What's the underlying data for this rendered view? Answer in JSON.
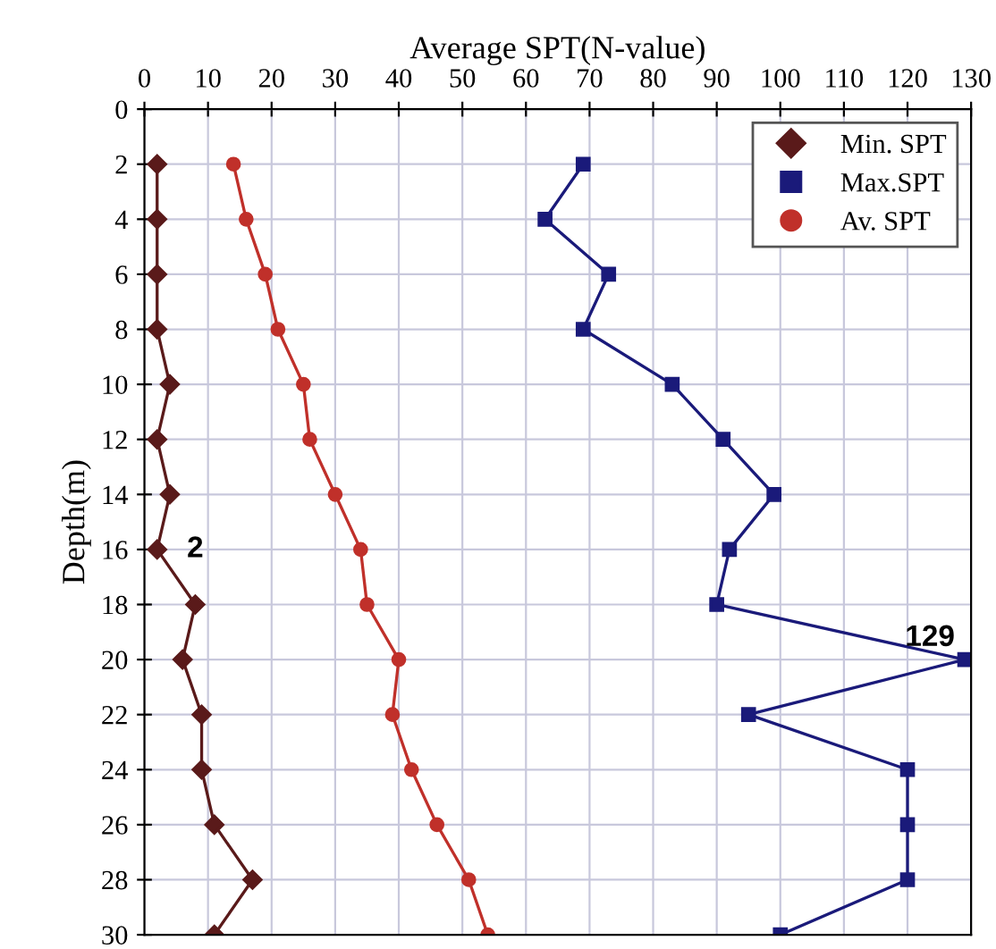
{
  "chart_data": {
    "type": "line",
    "xlabel": "Average SPT(N-value)",
    "ylabel": "Depth(m)",
    "xlim": [
      0,
      130
    ],
    "xticks": [
      0,
      10,
      20,
      30,
      40,
      50,
      60,
      70,
      80,
      90,
      100,
      110,
      120,
      130
    ],
    "ylim": [
      30,
      0
    ],
    "yticks": [
      0,
      2,
      4,
      6,
      8,
      10,
      12,
      14,
      16,
      18,
      20,
      22,
      24,
      26,
      28,
      30
    ],
    "grid": true,
    "legend": "top right",
    "line_style": "solid",
    "series": [
      {
        "name": "Min. SPT",
        "color": "#5a1a1a",
        "marker": "diamond",
        "x": [
          2,
          2,
          2,
          2,
          4,
          2,
          4,
          2,
          8,
          6,
          9,
          9,
          11,
          17,
          11
        ],
        "values": [
          2,
          4,
          6,
          8,
          10,
          12,
          14,
          16,
          18,
          20,
          22,
          24,
          26,
          28,
          30
        ]
      },
      {
        "name": "Max.SPT",
        "color": "#1a1a7a",
        "marker": "square",
        "x": [
          69,
          63,
          73,
          69,
          83,
          91,
          99,
          92,
          90,
          129,
          95,
          120,
          120,
          120,
          100
        ],
        "values": [
          2,
          4,
          6,
          8,
          10,
          12,
          14,
          16,
          18,
          20,
          22,
          24,
          26,
          28,
          30
        ]
      },
      {
        "name": "Av. SPT",
        "color": "#c0302a",
        "marker": "circle",
        "x": [
          14,
          16,
          19,
          21,
          25,
          26,
          30,
          34,
          35,
          40,
          39,
          42,
          46,
          51,
          54
        ],
        "values": [
          2,
          4,
          6,
          8,
          10,
          12,
          14,
          16,
          18,
          20,
          22,
          24,
          26,
          28,
          30
        ]
      }
    ],
    "annotations": [
      {
        "text": "2",
        "x": 2,
        "y": 16
      },
      {
        "text": "129",
        "x": 129,
        "y": 20
      }
    ]
  }
}
